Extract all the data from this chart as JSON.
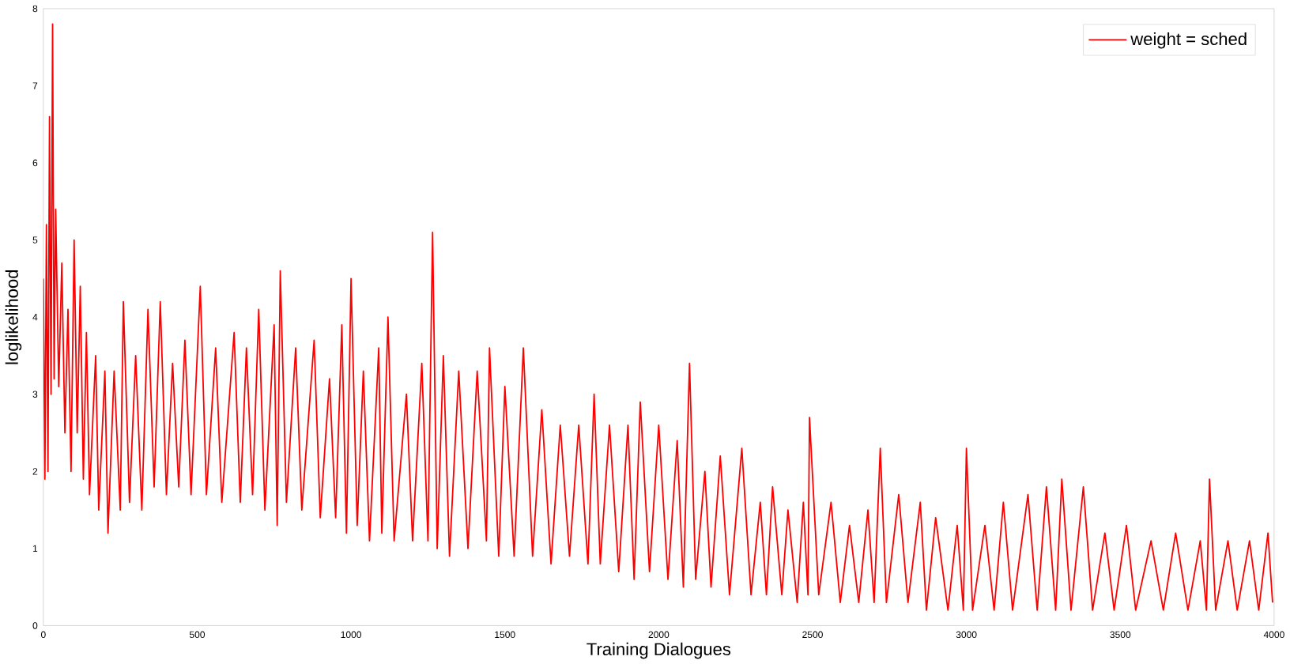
{
  "chart_data": {
    "type": "line",
    "xlabel": "Training Dialogues",
    "ylabel": "loglikelihood",
    "xlim": [
      0,
      4000
    ],
    "ylim": [
      0,
      8
    ],
    "xticks": [
      0,
      500,
      1000,
      1500,
      2000,
      2500,
      3000,
      3500,
      4000
    ],
    "yticks": [
      0,
      1,
      2,
      3,
      4,
      5,
      6,
      7,
      8
    ],
    "legend": "top right",
    "series": [
      {
        "name": "weight = sched",
        "color": "#ff0000",
        "x": [
          0,
          5,
          10,
          15,
          20,
          25,
          30,
          35,
          40,
          50,
          60,
          70,
          80,
          90,
          100,
          110,
          120,
          130,
          140,
          150,
          170,
          180,
          200,
          210,
          230,
          250,
          260,
          280,
          300,
          320,
          340,
          360,
          380,
          400,
          420,
          440,
          460,
          480,
          510,
          530,
          560,
          580,
          620,
          640,
          660,
          680,
          700,
          720,
          750,
          760,
          770,
          790,
          820,
          840,
          880,
          900,
          930,
          950,
          970,
          985,
          1000,
          1020,
          1040,
          1060,
          1090,
          1100,
          1120,
          1140,
          1180,
          1200,
          1230,
          1250,
          1265,
          1280,
          1300,
          1320,
          1350,
          1380,
          1410,
          1440,
          1450,
          1480,
          1500,
          1530,
          1560,
          1590,
          1620,
          1650,
          1680,
          1710,
          1740,
          1770,
          1790,
          1810,
          1840,
          1870,
          1900,
          1920,
          1940,
          1970,
          2000,
          2030,
          2060,
          2080,
          2100,
          2120,
          2150,
          2170,
          2200,
          2230,
          2270,
          2300,
          2330,
          2350,
          2370,
          2400,
          2420,
          2450,
          2470,
          2485,
          2490,
          2520,
          2560,
          2590,
          2620,
          2650,
          2680,
          2700,
          2720,
          2740,
          2780,
          2810,
          2850,
          2870,
          2900,
          2940,
          2970,
          2990,
          3000,
          3020,
          3060,
          3090,
          3120,
          3150,
          3200,
          3230,
          3260,
          3290,
          3310,
          3340,
          3380,
          3410,
          3450,
          3480,
          3520,
          3550,
          3600,
          3640,
          3680,
          3720,
          3760,
          3780,
          3790,
          3810,
          3850,
          3880,
          3920,
          3950,
          3980,
          3995
        ],
        "values": [
          4.5,
          1.9,
          5.2,
          2.0,
          6.6,
          3.0,
          7.8,
          3.2,
          5.4,
          3.1,
          4.7,
          2.5,
          4.1,
          2.0,
          5.0,
          2.5,
          4.4,
          1.9,
          3.8,
          1.7,
          3.5,
          1.5,
          3.3,
          1.2,
          3.3,
          1.5,
          4.2,
          1.6,
          3.5,
          1.5,
          4.1,
          1.8,
          4.2,
          1.7,
          3.4,
          1.8,
          3.7,
          1.7,
          4.4,
          1.7,
          3.6,
          1.6,
          3.8,
          1.6,
          3.6,
          1.7,
          4.1,
          1.5,
          3.9,
          1.3,
          4.6,
          1.6,
          3.6,
          1.5,
          3.7,
          1.4,
          3.2,
          1.4,
          3.9,
          1.2,
          4.5,
          1.3,
          3.3,
          1.1,
          3.6,
          1.2,
          4.0,
          1.1,
          3.0,
          1.1,
          3.4,
          1.1,
          5.1,
          1.0,
          3.5,
          0.9,
          3.3,
          1.0,
          3.3,
          1.1,
          3.6,
          0.9,
          3.1,
          0.9,
          3.6,
          0.9,
          2.8,
          0.8,
          2.6,
          0.9,
          2.6,
          0.8,
          3.0,
          0.8,
          2.6,
          0.7,
          2.6,
          0.6,
          2.9,
          0.7,
          2.6,
          0.6,
          2.4,
          0.5,
          3.4,
          0.6,
          2.0,
          0.5,
          2.2,
          0.4,
          2.3,
          0.4,
          1.6,
          0.4,
          1.8,
          0.4,
          1.5,
          0.3,
          1.6,
          0.4,
          2.7,
          0.4,
          1.6,
          0.3,
          1.3,
          0.3,
          1.5,
          0.3,
          2.3,
          0.3,
          1.7,
          0.3,
          1.6,
          0.2,
          1.4,
          0.2,
          1.3,
          0.2,
          2.3,
          0.2,
          1.3,
          0.2,
          1.6,
          0.2,
          1.7,
          0.2,
          1.8,
          0.2,
          1.9,
          0.2,
          1.8,
          0.2,
          1.2,
          0.2,
          1.3,
          0.2,
          1.1,
          0.2,
          1.2,
          0.2,
          1.1,
          0.2,
          1.9,
          0.2,
          1.1,
          0.2,
          1.1,
          0.2,
          1.2,
          0.3
        ]
      }
    ]
  }
}
